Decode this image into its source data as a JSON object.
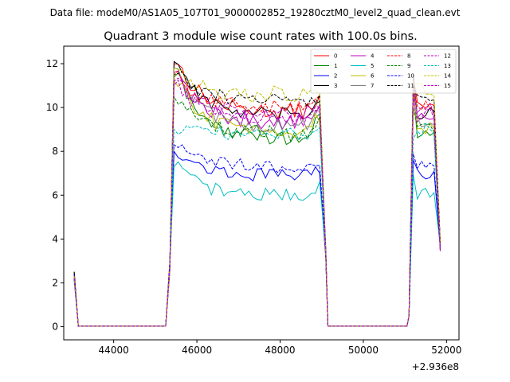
{
  "chart_data": {
    "type": "line",
    "suptitle": "Data file: modeM0/AS1A05_107T01_9000002852_19280cztM0_level2_quad_clean.evt",
    "title": "Quadrant 3 module wise count rates with 100.0s bins.",
    "xlabel": "",
    "ylabel": "",
    "x_offset_label": "+2.936e8",
    "xlim": [
      42800,
      52300
    ],
    "ylim": [
      -0.6,
      12.8
    ],
    "x_ticks": [
      44000,
      46000,
      48000,
      50000,
      52000
    ],
    "x_tick_labels": [
      "44000",
      "46000",
      "48000",
      "50000",
      "52000"
    ],
    "y_ticks": [
      0,
      2,
      4,
      6,
      8,
      10,
      12
    ],
    "y_tick_labels": [
      "0",
      "2",
      "4",
      "6",
      "8",
      "10",
      "12"
    ],
    "legend_placement": "top-right",
    "segments": [
      {
        "start": 43050,
        "end": 45250
      },
      {
        "start": 45250,
        "end": 49100
      },
      {
        "start": 49100,
        "end": 51050
      },
      {
        "start": 51050,
        "end": 51850
      }
    ],
    "series": [
      {
        "name": "0",
        "color": "#ff0000",
        "dash": "solid",
        "plateau": 9.8,
        "peak": 12.0,
        "start": 2.3,
        "jitter": 0.35
      },
      {
        "name": "1",
        "color": "#008000",
        "dash": "solid",
        "plateau": 8.6,
        "peak": 11.4,
        "start": 2.2,
        "jitter": 0.35
      },
      {
        "name": "2",
        "color": "#0000ff",
        "dash": "solid",
        "plateau": 6.9,
        "peak": 8.0,
        "start": 2.4,
        "jitter": 0.3
      },
      {
        "name": "3",
        "color": "#000000",
        "dash": "solid",
        "plateau": 9.6,
        "peak": 12.1,
        "start": 2.5,
        "jitter": 0.35
      },
      {
        "name": "4",
        "color": "#bf00bf",
        "dash": "solid",
        "plateau": 9.3,
        "peak": 11.6,
        "start": 2.3,
        "jitter": 0.35
      },
      {
        "name": "5",
        "color": "#00bfbf",
        "dash": "solid",
        "plateau": 6.0,
        "peak": 7.3,
        "start": 2.1,
        "jitter": 0.3
      },
      {
        "name": "6",
        "color": "#bfbf00",
        "dash": "solid",
        "plateau": 8.9,
        "peak": 11.2,
        "start": 2.3,
        "jitter": 0.35
      },
      {
        "name": "7",
        "color": "#808080",
        "dash": "solid",
        "plateau": 9.1,
        "peak": 11.8,
        "start": 2.2,
        "jitter": 0.35
      },
      {
        "name": "8",
        "color": "#ff0000",
        "dash": "dashed",
        "plateau": 10.0,
        "peak": 11.5,
        "start": 2.3,
        "jitter": 0.35
      },
      {
        "name": "9",
        "color": "#008000",
        "dash": "dashed",
        "plateau": 8.8,
        "peak": 10.5,
        "start": 2.2,
        "jitter": 0.35
      },
      {
        "name": "10",
        "color": "#0000ff",
        "dash": "dashed",
        "plateau": 7.3,
        "peak": 8.3,
        "start": 2.4,
        "jitter": 0.3
      },
      {
        "name": "11",
        "color": "#000000",
        "dash": "dashed",
        "plateau": 10.3,
        "peak": 11.5,
        "start": 2.5,
        "jitter": 0.35
      },
      {
        "name": "12",
        "color": "#bf00bf",
        "dash": "dashed",
        "plateau": 9.5,
        "peak": 11.0,
        "start": 2.3,
        "jitter": 0.35
      },
      {
        "name": "13",
        "color": "#00bfbf",
        "dash": "dashed",
        "plateau": 8.8,
        "peak": 9.0,
        "start": 2.1,
        "jitter": 0.3
      },
      {
        "name": "14",
        "color": "#bfbf00",
        "dash": "dashed",
        "plateau": 10.6,
        "peak": 11.8,
        "start": 2.3,
        "jitter": 0.4
      },
      {
        "name": "15",
        "color": "#bf00bf",
        "dash": "dashed",
        "plateau": 9.7,
        "peak": 11.2,
        "start": 2.2,
        "jitter": 0.35
      }
    ]
  }
}
